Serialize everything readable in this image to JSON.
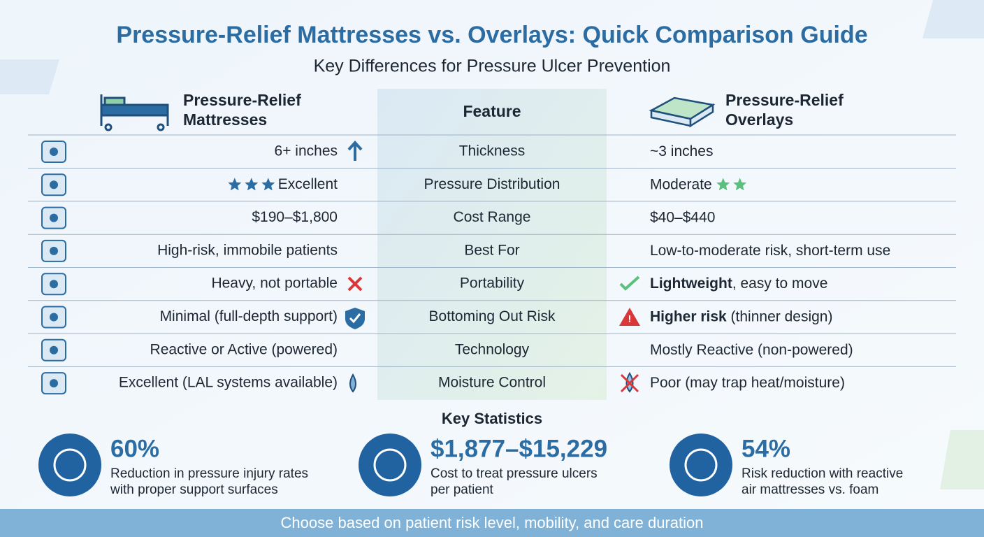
{
  "header": {
    "title": "Pressure-Relief Mattresses vs. Overlays: Quick Comparison Guide",
    "subtitle": "Key Differences for Pressure Ulcer Prevention"
  },
  "table": {
    "columns": {
      "mattress": "Pressure-Relief Mattresses",
      "feature": "Feature",
      "overlay": "Pressure-Relief Overlays"
    },
    "rows": [
      {
        "feature": "Thickness",
        "mattress": "6+ inches",
        "overlay": "~3 inches"
      },
      {
        "feature": "Pressure Distribution",
        "mattress": "Excellent",
        "mattress_stars": 3,
        "overlay": "Moderate",
        "overlay_stars": 2
      },
      {
        "feature": "Cost Range",
        "mattress": "$190–$1,800",
        "overlay": "$40–$440"
      },
      {
        "feature": "Best For",
        "mattress": "High-risk, immobile patients",
        "overlay": "Low-to-moderate risk, short-term use"
      },
      {
        "feature": "Portability",
        "mattress": "Heavy, not portable",
        "overlay": [
          "Lightweight",
          ", easy to move"
        ]
      },
      {
        "feature": "Bottoming Out Risk",
        "mattress": "Minimal (full-depth support)",
        "overlay": [
          "Higher risk",
          " (thinner design)"
        ]
      },
      {
        "feature": "Technology",
        "mattress": "Reactive or Active (powered)",
        "overlay": "Mostly Reactive (non-powered)"
      },
      {
        "feature": "Moisture Control",
        "mattress": "Excellent (LAL systems available)",
        "overlay": "Poor (may trap heat/moisture)"
      }
    ]
  },
  "statistics": {
    "title": "Key Statistics",
    "items": [
      {
        "value": "60%",
        "description": [
          "Reduction in pressure injury rates",
          "with proper support surfaces"
        ]
      },
      {
        "value": "$1,877–$15,229",
        "description": [
          "Cost to treat pressure ulcers",
          "per patient"
        ]
      },
      {
        "value": "54%",
        "description": [
          "Risk reduction with reactive",
          "air mattresses vs. foam"
        ]
      }
    ]
  },
  "footer": {
    "text": "Choose based on patient risk level, mobility, and care duration"
  }
}
